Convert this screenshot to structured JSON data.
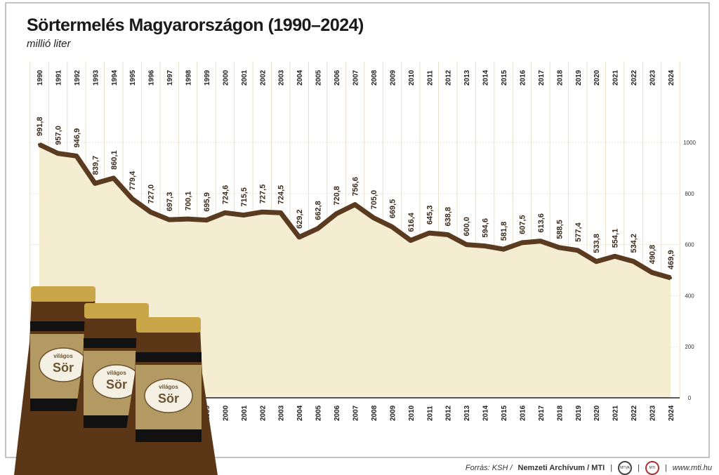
{
  "chart_data": {
    "type": "area",
    "title": "Sörtermelés Magyarországon (1990–2024)",
    "subtitle": "millió liter",
    "xlabel": "",
    "ylabel": "millió liter",
    "ylim": [
      0,
      1000
    ],
    "yticks": [
      0,
      200,
      400,
      600,
      800,
      1000
    ],
    "grid": true,
    "x": [
      1990,
      1991,
      1992,
      1993,
      1994,
      1995,
      1996,
      1997,
      1998,
      1999,
      2000,
      2001,
      2002,
      2003,
      2004,
      2005,
      2006,
      2007,
      2008,
      2009,
      2010,
      2011,
      2012,
      2013,
      2014,
      2015,
      2016,
      2017,
      2018,
      2019,
      2020,
      2021,
      2022,
      2023,
      2024
    ],
    "values": [
      991.8,
      957.0,
      946.9,
      839.7,
      860.1,
      779.4,
      727.0,
      697.3,
      700.1,
      695.9,
      724.6,
      715.5,
      727.5,
      724.5,
      629.2,
      662.8,
      720.8,
      756.6,
      705.0,
      669.5,
      616.4,
      645.3,
      638.8,
      600.0,
      594.6,
      581.8,
      607.5,
      613.6,
      588.5,
      577.4,
      533.8,
      554.1,
      534.2,
      490.8,
      469.9
    ],
    "colors": {
      "line": "#5b3b1f",
      "area": "#f4edd2",
      "grid": "#e6e0cc"
    }
  },
  "footer": {
    "source_prefix": "Forrás: KSH /",
    "source_bold": "Nemzeti Archívum / MTI",
    "logo1": "MTVA",
    "logo2": "MTI",
    "url": "www.mti.hu"
  },
  "bottle_label": {
    "top": "világos",
    "main": "Sör"
  }
}
